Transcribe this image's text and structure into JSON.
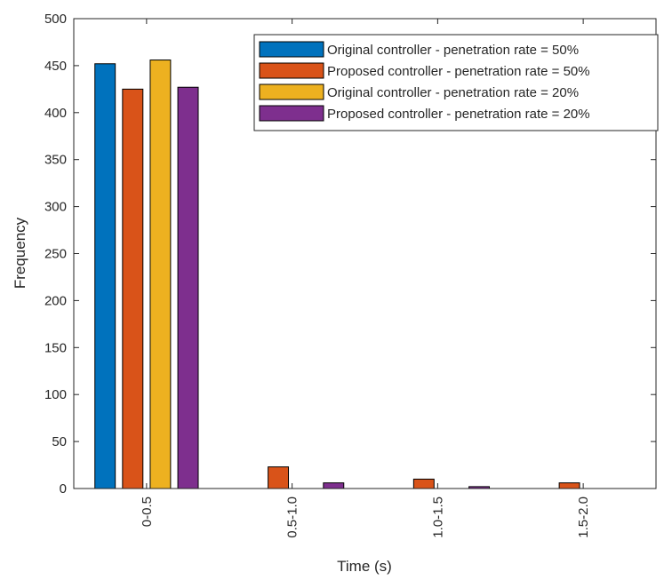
{
  "chart_data": {
    "type": "bar",
    "xlabel": "Time (s)",
    "ylabel": "Frequency",
    "ylim": [
      0,
      500
    ],
    "yticks": [
      0,
      50,
      100,
      150,
      200,
      250,
      300,
      350,
      400,
      450,
      500
    ],
    "categories": [
      "0-0.5",
      "0.5-1.0",
      "1.0-1.5",
      "1.5-2.0"
    ],
    "series": [
      {
        "name": "Original controller - penetration rate = 50%",
        "color": "#0072BD",
        "values": [
          452,
          0,
          0,
          0
        ]
      },
      {
        "name": "Proposed controller - penetration rate = 50%",
        "color": "#D95319",
        "values": [
          425,
          23,
          10,
          6
        ]
      },
      {
        "name": "Original controller - penetration rate = 20%",
        "color": "#EDB120",
        "values": [
          456,
          0,
          0,
          0
        ]
      },
      {
        "name": "Proposed controller - penetration rate = 20%",
        "color": "#7E2F8E",
        "values": [
          427,
          6,
          2,
          0
        ]
      }
    ],
    "legend_position": "top-right",
    "grid": false
  }
}
